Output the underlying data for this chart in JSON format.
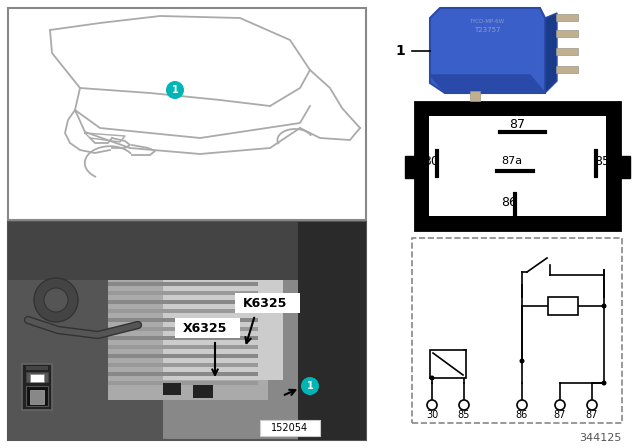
{
  "bg_color": "#ffffff",
  "teal_color": "#00b5b5",
  "part_number": "152054",
  "diagram_number": "344125",
  "k_label": "K6325",
  "x_label": "X6325",
  "relay_label": "1",
  "schematic_pins": [
    "30",
    "85",
    "86",
    "87",
    "87"
  ],
  "pin_diagram_labels": [
    "87",
    "87a",
    "85",
    "30",
    "86"
  ],
  "car_line_color": "#aaaaaa",
  "photo_colors": {
    "bg": "#b0b0b0",
    "dark_left": "#555555",
    "mid": "#888888",
    "light": "#cccccc",
    "wiring": "#999999",
    "pillar": "#333333"
  },
  "relay_blue": "#3a5fc8",
  "relay_dark": "#2a4aaa",
  "relay_pin_color": "#b0a090",
  "label_bg": "#ffffff",
  "label_border": "#888888"
}
